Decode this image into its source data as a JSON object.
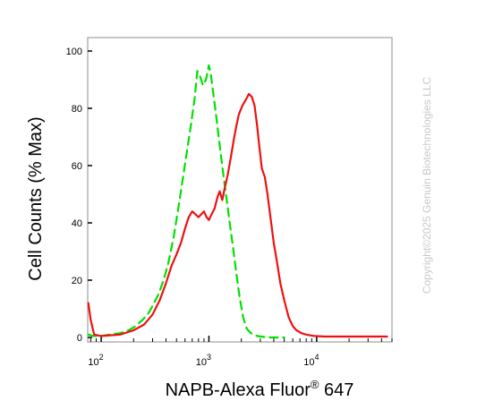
{
  "chart_data": {
    "type": "line",
    "title": "",
    "xlabel": "NAPB-Alexa Fluor",
    "xlabel_sup": "®",
    "xlabel_suffix": " 647",
    "ylabel": "Cell Counts (% Max)",
    "xscale": "log",
    "xlim": [
      75,
      50000
    ],
    "ylim": [
      0,
      100
    ],
    "x_ticks": [
      {
        "base": "10",
        "exp": "2",
        "value": 100
      },
      {
        "base": "10",
        "exp": "3",
        "value": 1000
      },
      {
        "base": "10",
        "exp": "4",
        "value": 10000
      }
    ],
    "y_ticks": [
      "0",
      "20",
      "40",
      "60",
      "80",
      "100"
    ],
    "watermark": "Copyright©2025 Genuin Biotechnologies LLC",
    "series": [
      {
        "color": "#00e000",
        "style": "dashed",
        "points": [
          [
            76,
            1
          ],
          [
            85,
            0.5
          ],
          [
            100,
            0.5
          ],
          [
            120,
            1
          ],
          [
            150,
            1.5
          ],
          [
            180,
            2.5
          ],
          [
            210,
            4
          ],
          [
            240,
            6
          ],
          [
            270,
            8
          ],
          [
            300,
            11
          ],
          [
            340,
            15
          ],
          [
            380,
            20
          ],
          [
            420,
            26
          ],
          [
            470,
            35
          ],
          [
            520,
            45
          ],
          [
            570,
            55
          ],
          [
            620,
            64
          ],
          [
            680,
            74
          ],
          [
            740,
            84
          ],
          [
            780,
            93
          ],
          [
            830,
            91
          ],
          [
            880,
            88
          ],
          [
            940,
            90
          ],
          [
            1000,
            95
          ],
          [
            1040,
            92
          ],
          [
            1100,
            85
          ],
          [
            1180,
            76
          ],
          [
            1260,
            67
          ],
          [
            1350,
            58
          ],
          [
            1450,
            49
          ],
          [
            1560,
            40
          ],
          [
            1680,
            31
          ],
          [
            1800,
            22
          ],
          [
            1930,
            14
          ],
          [
            2080,
            7
          ],
          [
            2250,
            3
          ],
          [
            2450,
            1.5
          ],
          [
            2800,
            0.5
          ],
          [
            3500,
            0
          ],
          [
            5000,
            0
          ]
        ]
      },
      {
        "color": "#ee1111",
        "style": "solid",
        "points": [
          [
            76,
            12
          ],
          [
            80,
            6
          ],
          [
            86,
            1
          ],
          [
            100,
            0.5
          ],
          [
            150,
            1
          ],
          [
            200,
            2.5
          ],
          [
            250,
            4.5
          ],
          [
            300,
            8
          ],
          [
            350,
            13
          ],
          [
            400,
            19
          ],
          [
            450,
            25
          ],
          [
            500,
            29
          ],
          [
            550,
            33
          ],
          [
            600,
            38
          ],
          [
            650,
            42
          ],
          [
            700,
            44
          ],
          [
            750,
            43
          ],
          [
            800,
            42
          ],
          [
            850,
            43
          ],
          [
            900,
            44
          ],
          [
            950,
            42
          ],
          [
            1000,
            41
          ],
          [
            1060,
            43
          ],
          [
            1130,
            45
          ],
          [
            1200,
            49
          ],
          [
            1260,
            51
          ],
          [
            1330,
            48
          ],
          [
            1400,
            52
          ],
          [
            1500,
            57
          ],
          [
            1600,
            63
          ],
          [
            1700,
            69
          ],
          [
            1800,
            74
          ],
          [
            1900,
            78
          ],
          [
            2050,
            81
          ],
          [
            2200,
            83
          ],
          [
            2350,
            85
          ],
          [
            2500,
            84
          ],
          [
            2650,
            81
          ],
          [
            2800,
            74
          ],
          [
            2950,
            66
          ],
          [
            3100,
            59
          ],
          [
            3300,
            56
          ],
          [
            3500,
            50
          ],
          [
            3750,
            41
          ],
          [
            4000,
            33
          ],
          [
            4300,
            26
          ],
          [
            4600,
            19
          ],
          [
            5000,
            13
          ],
          [
            5500,
            7
          ],
          [
            6000,
            4
          ],
          [
            6500,
            2.5
          ],
          [
            7200,
            1.5
          ],
          [
            8000,
            1
          ],
          [
            9500,
            0.5
          ],
          [
            12000,
            0.3
          ],
          [
            20000,
            0.3
          ],
          [
            45000,
            0.3
          ]
        ]
      }
    ]
  }
}
